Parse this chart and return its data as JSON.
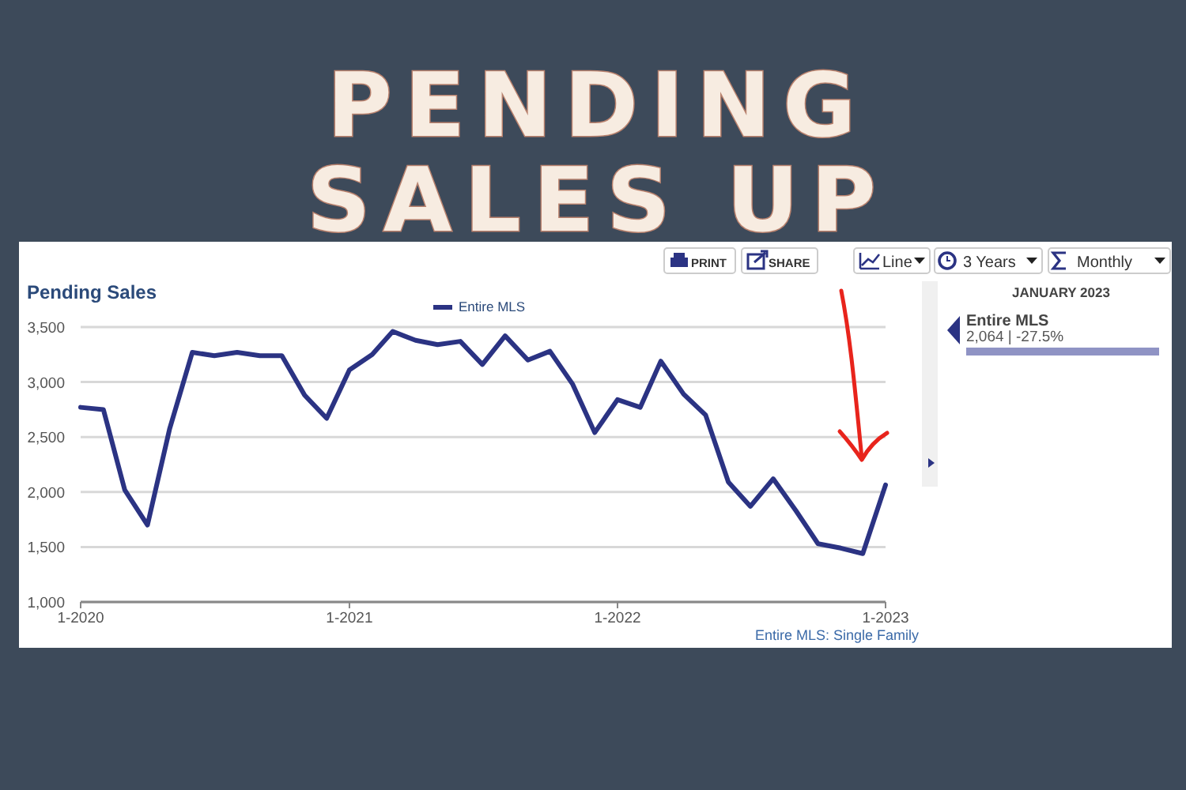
{
  "chart_data": {
    "type": "line",
    "title": "PENDING SALES UP",
    "subtitle": "Pending Sales",
    "x": [
      "2020-01",
      "2020-02",
      "2020-03",
      "2020-04",
      "2020-05",
      "2020-06",
      "2020-07",
      "2020-08",
      "2020-09",
      "2020-10",
      "2020-11",
      "2020-12",
      "2021-01",
      "2021-02",
      "2021-03",
      "2021-04",
      "2021-05",
      "2021-06",
      "2021-07",
      "2021-08",
      "2021-09",
      "2021-10",
      "2021-11",
      "2021-12",
      "2022-01",
      "2022-02",
      "2022-03",
      "2022-04",
      "2022-05",
      "2022-06",
      "2022-07",
      "2022-08",
      "2022-09",
      "2022-10",
      "2022-11",
      "2022-12",
      "2023-01"
    ],
    "series": [
      {
        "name": "Entire MLS",
        "color": "#2b3383",
        "values": [
          2770,
          2750,
          2020,
          1700,
          2570,
          3270,
          3240,
          3270,
          3240,
          3240,
          2880,
          2670,
          3110,
          3250,
          3460,
          3380,
          3340,
          3370,
          3160,
          3420,
          3200,
          3280,
          2980,
          2540,
          2840,
          2770,
          3190,
          2890,
          2700,
          2090,
          1870,
          2120,
          1830,
          1530,
          1490,
          1440,
          2064
        ]
      }
    ],
    "xlim": [
      "2020-01",
      "2023-01"
    ],
    "xticks": [
      {
        "value": "2020-01",
        "label": "1-2020"
      },
      {
        "value": "2021-01",
        "label": "1-2021"
      },
      {
        "value": "2022-01",
        "label": "1-2022"
      },
      {
        "value": "2023-01",
        "label": "1-2023"
      }
    ],
    "ylim": [
      1000,
      3500
    ],
    "yticks": [
      {
        "value": 1000,
        "label": "1,000"
      },
      {
        "value": 1500,
        "label": "1,500"
      },
      {
        "value": 2000,
        "label": "2,000"
      },
      {
        "value": 2500,
        "label": "2,500"
      },
      {
        "value": 3000,
        "label": "3,000"
      },
      {
        "value": 3500,
        "label": "3,500"
      }
    ],
    "grid": "y",
    "legend": "top",
    "marker": "none",
    "line_style": "solid",
    "annotations": [
      "PRINT",
      "SHARE",
      "Line",
      "3 Years",
      "Monthly",
      "JANUARY 2023",
      "Entire MLS",
      "2,064 | -27.5%",
      "Entire MLS: Single Family"
    ]
  }
}
